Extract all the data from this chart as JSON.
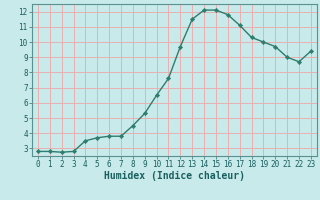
{
  "x": [
    0,
    1,
    2,
    3,
    4,
    5,
    6,
    7,
    8,
    9,
    10,
    11,
    12,
    13,
    14,
    15,
    16,
    17,
    18,
    19,
    20,
    21,
    22,
    23
  ],
  "y": [
    2.8,
    2.8,
    2.75,
    2.8,
    3.5,
    3.7,
    3.8,
    3.8,
    4.5,
    5.3,
    6.5,
    7.6,
    9.7,
    11.5,
    12.1,
    12.1,
    11.8,
    11.1,
    10.3,
    10.0,
    9.7,
    9.0,
    8.7,
    9.4
  ],
  "xlabel": "Humidex (Indice chaleur)",
  "ylabel_ticks": [
    3,
    4,
    5,
    6,
    7,
    8,
    9,
    10,
    11,
    12
  ],
  "ylim": [
    2.5,
    12.5
  ],
  "xlim": [
    -0.5,
    23.5
  ],
  "bg_color": "#c8eaea",
  "grid_color_major": "#e8b0b0",
  "grid_color_minor": "#e8b0b0",
  "line_color": "#2e7d6e",
  "marker_color": "#2e7d6e",
  "xlabel_color": "#1a5f5f",
  "tick_color": "#1a5f5f",
  "axis_color": "#5a9090",
  "xlabel_fontsize": 7,
  "tick_fontsize": 5.5
}
